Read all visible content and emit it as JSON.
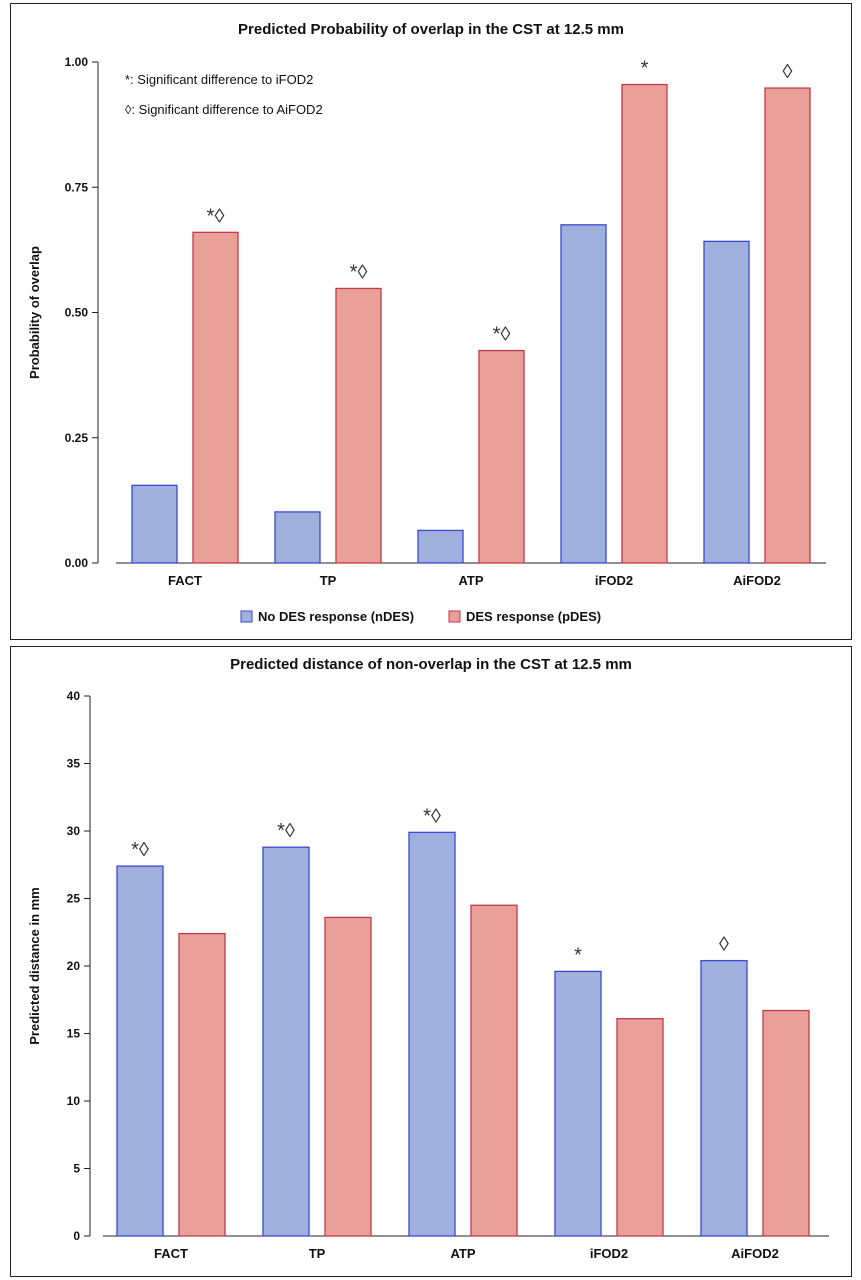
{
  "colors": {
    "ndes_fill": "#9eb0db",
    "ndes_stroke": "#3b47d6",
    "pdes_fill": "#e8a099",
    "pdes_stroke": "#c23a46"
  },
  "chart_data": [
    {
      "type": "bar",
      "title": "Predicted Probability of overlap in the CST at 12.5 mm",
      "xlabel": "",
      "ylabel": "Probability of overlap",
      "categories": [
        "FACT",
        "TP",
        "ATP",
        "iFOD2",
        "AiFOD2"
      ],
      "ylim": [
        0,
        1.0
      ],
      "yticks": [
        "0.00",
        "0.25",
        "0.50",
        "0.75",
        "1.00"
      ],
      "grid": false,
      "legend_position": "bottom",
      "series": [
        {
          "name": "No DES response (nDES)",
          "values": [
            0.155,
            0.102,
            0.065,
            0.675,
            0.642
          ]
        },
        {
          "name": "DES response (pDES)",
          "values": [
            0.66,
            0.548,
            0.424,
            0.955,
            0.948
          ]
        }
      ],
      "markers": [
        {
          "category": "FACT",
          "series": 1,
          "text": "*◊"
        },
        {
          "category": "TP",
          "series": 1,
          "text": "*◊"
        },
        {
          "category": "ATP",
          "series": 1,
          "text": "*◊"
        },
        {
          "category": "iFOD2",
          "series": 1,
          "text": "*"
        },
        {
          "category": "AiFOD2",
          "series": 1,
          "text": "◊"
        }
      ],
      "annotations": [
        "*: Significant difference to iFOD2",
        "◊: Significant difference to AiFOD2"
      ]
    },
    {
      "type": "bar",
      "title": "Predicted distance of non-overlap in the CST at 12.5 mm",
      "xlabel": "",
      "ylabel": "Predicted distance in mm",
      "categories": [
        "FACT",
        "TP",
        "ATP",
        "iFOD2",
        "AiFOD2"
      ],
      "ylim": [
        0,
        40
      ],
      "yticks": [
        "0",
        "5",
        "10",
        "15",
        "20",
        "25",
        "30",
        "35",
        "40"
      ],
      "grid": false,
      "series": [
        {
          "name": "No DES response (nDES)",
          "values": [
            27.4,
            28.8,
            29.9,
            19.6,
            20.4
          ]
        },
        {
          "name": "DES response (pDES)",
          "values": [
            22.4,
            23.6,
            24.5,
            16.1,
            16.7
          ]
        }
      ],
      "markers": [
        {
          "category": "FACT",
          "series": 0,
          "text": "*◊"
        },
        {
          "category": "TP",
          "series": 0,
          "text": "*◊"
        },
        {
          "category": "ATP",
          "series": 0,
          "text": "*◊"
        },
        {
          "category": "iFOD2",
          "series": 0,
          "text": "*"
        },
        {
          "category": "AiFOD2",
          "series": 0,
          "text": "◊"
        }
      ]
    }
  ]
}
